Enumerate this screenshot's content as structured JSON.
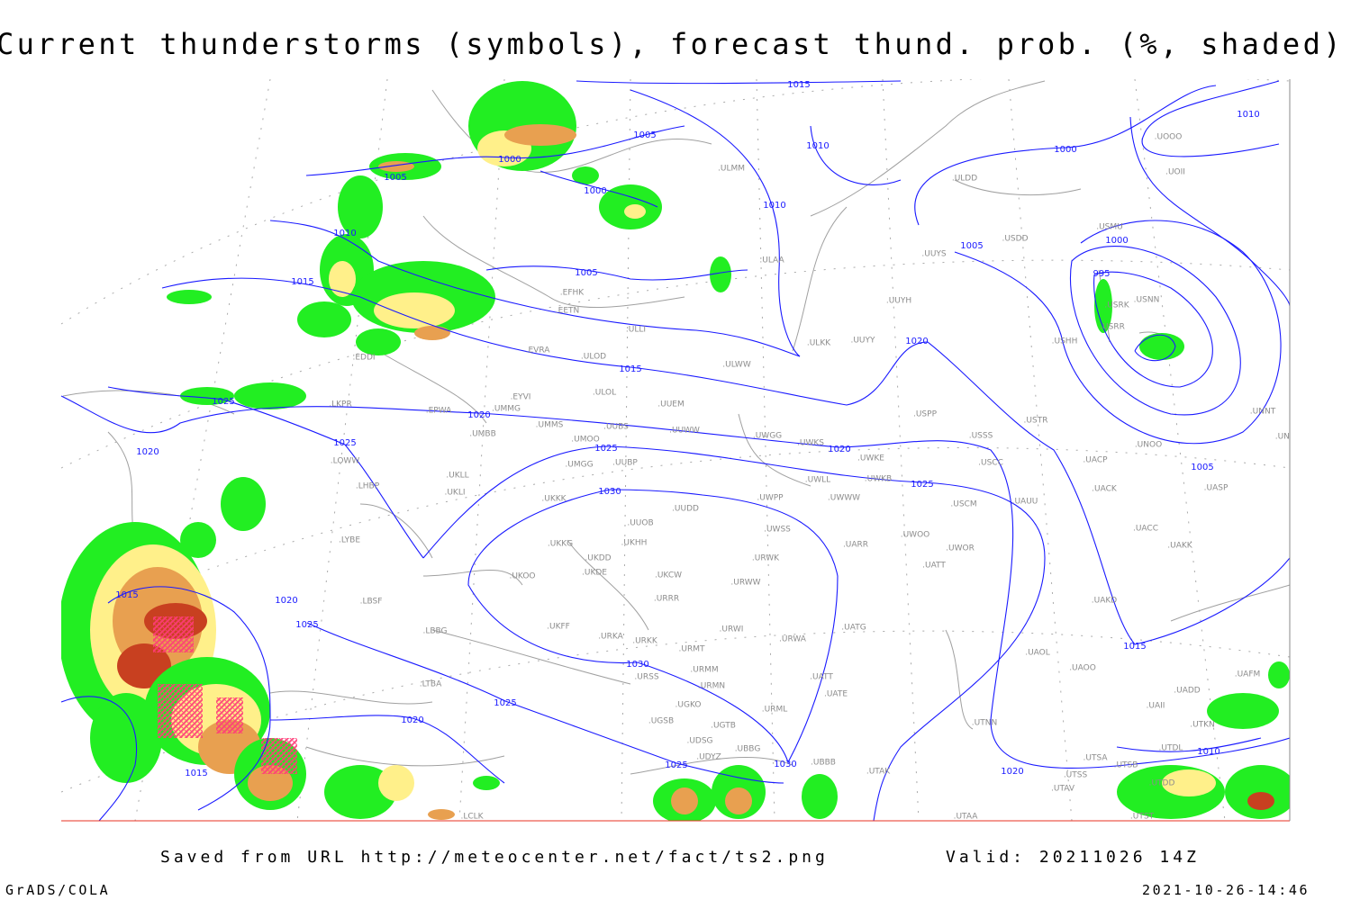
{
  "title": "Current thunderstorms (symbols), forecast thund. prob. (%, shaded)",
  "footer": {
    "saved": "Saved from URL http://meteocenter.net/fact/ts2.png",
    "valid": "Valid: 20211026 14Z",
    "software": "GrADS/COLA",
    "generated": "2021-10-26-14:46"
  },
  "colors": {
    "isobar": "#1a1aff",
    "station": "#8c8c8c",
    "coast": "#a0a0a0",
    "prob_low": "#22ee22",
    "prob_mid": "#fff08a",
    "prob_high": "#e8a050",
    "prob_max": "#c84020",
    "thunderstorm_symbol": "#ff3c78"
  },
  "isobar_labels": [
    "1015",
    "1010",
    "1010",
    "1005",
    "1005",
    "1005",
    "1000",
    "1000",
    "1000",
    "1000",
    "1010",
    "1015",
    "1015",
    "1020",
    "1020",
    "1020",
    "1025",
    "1025",
    "1025",
    "1030",
    "1025",
    "1020",
    "1025",
    "1020",
    "1030",
    "1025",
    "1030",
    "1020",
    "1015",
    "1020",
    "1025",
    "1015",
    "1005",
    "995",
    "1010",
    "1010",
    "1015",
    "1005"
  ],
  "stations": [
    "ULMM",
    "ULAA",
    "ULLI",
    "ULOL",
    "ULWW",
    "ULOD",
    "EFHK",
    "EETN",
    "EVRA",
    "EYVI",
    "UMMG",
    "EPWA",
    "UMBB",
    "UMMS",
    "UMOO",
    "UUBS",
    "UUEM",
    "UUWW",
    "UWGG",
    "UWKS",
    "UWKE",
    "UWKB",
    "UWLL",
    "UWPP",
    "UWWW",
    "UUDD",
    "UUOB",
    "UKKK",
    "UMGG",
    "UUBP",
    "UKLL",
    "UKLI",
    "LKPR",
    "EDDI",
    "LOWW",
    "LHBP",
    "LYBE",
    "LBSF",
    "LBBG",
    "LTBA",
    "UKOO",
    "UKHH",
    "UKDD",
    "UKDE",
    "UKCW",
    "UKFF",
    "URRR",
    "URKA",
    "URKK",
    "URMT",
    "URWI",
    "URWA",
    "URSS",
    "URMM",
    "URMN",
    "UGKO",
    "UGSB",
    "UGTB",
    "UDSG",
    "UBBG",
    "UDYZ",
    "UBBB",
    "URML",
    "UATE",
    "UATT",
    "UATG",
    "UARR",
    "UWSS",
    "URWW",
    "URWK",
    "UWOO",
    "UWOR",
    "UATT",
    "USCM",
    "UAUU",
    "USCC",
    "USSS",
    "USTR",
    "USPP",
    "UUYY",
    "ULKK",
    "UUYH",
    "UUYS",
    "ULDD",
    "USDD",
    "USMU",
    "USRR",
    "USHH",
    "USRK",
    "USNN",
    "UOOO",
    "UOII",
    "UNNT",
    "UNBB",
    "UNOO",
    "UACP",
    "UACK",
    "UASP",
    "UACC",
    "UAKK",
    "UAKD",
    "UAII",
    "UAOL",
    "UAOO",
    "UADD",
    "UAFM",
    "UTAV",
    "UTSS",
    "UTSA",
    "UTSB",
    "UTDD",
    "UTAA",
    "UTAK",
    "UTNN",
    "UTST",
    "UTDL",
    "UTKN",
    "LCLK",
    "UKKG"
  ]
}
